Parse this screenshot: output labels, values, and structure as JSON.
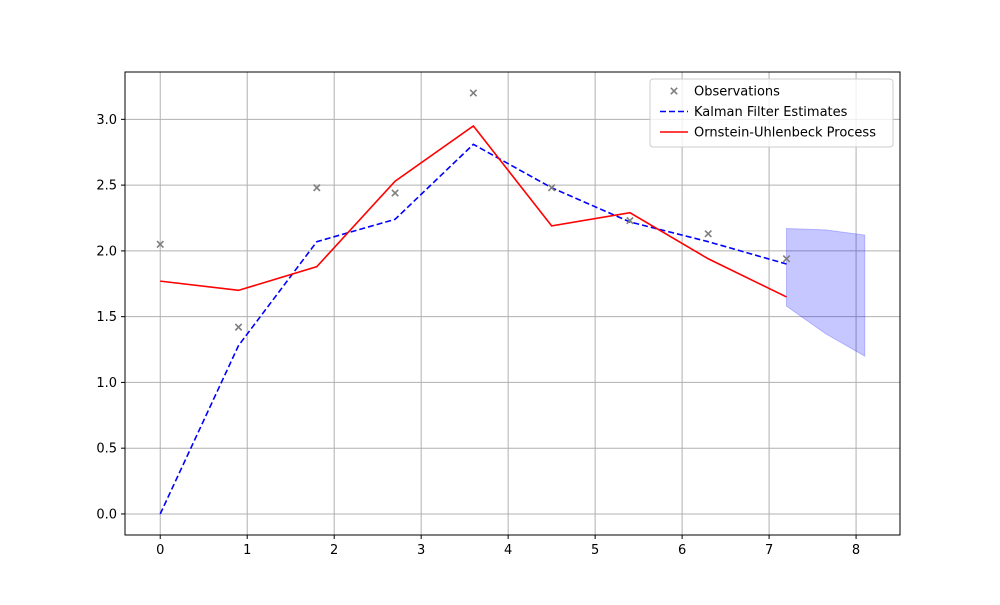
{
  "chart_data": {
    "type": "line",
    "title": "",
    "xlabel": "",
    "ylabel": "",
    "xlim": [
      -0.405,
      8.505
    ],
    "ylim": [
      -0.16,
      3.36
    ],
    "xticks": [
      0,
      1,
      2,
      3,
      4,
      5,
      6,
      7,
      8
    ],
    "yticks": [
      0.0,
      0.5,
      1.0,
      1.5,
      2.0,
      2.5,
      3.0
    ],
    "xtick_labels": [
      "0",
      "1",
      "2",
      "3",
      "4",
      "5",
      "6",
      "7",
      "8"
    ],
    "ytick_labels": [
      "0.0",
      "0.5",
      "1.0",
      "1.5",
      "2.0",
      "2.5",
      "3.0"
    ],
    "grid": true,
    "legend": {
      "position": "top-right",
      "entries": [
        {
          "label": "Observations",
          "marker": "x",
          "color": "#7f7f7f"
        },
        {
          "label": "Kalman Filter Estimates",
          "style": "dashed",
          "color": "#0000ff"
        },
        {
          "label": "Ornstein-Uhlenbeck Process",
          "style": "solid",
          "color": "#ff0000"
        }
      ]
    },
    "series": [
      {
        "name": "Observations",
        "kind": "scatter",
        "color": "#7f7f7f",
        "x": [
          0,
          0.9,
          1.8,
          2.7,
          3.6,
          4.5,
          5.4,
          6.3,
          7.2
        ],
        "y": [
          2.05,
          1.42,
          2.48,
          2.44,
          3.2,
          2.48,
          2.23,
          2.13,
          1.94
        ]
      },
      {
        "name": "Kalman Filter Estimates",
        "kind": "line",
        "style": "dashed",
        "color": "#0000ff",
        "x": [
          0,
          0.9,
          1.8,
          2.7,
          3.6,
          4.5,
          5.4,
          6.3,
          7.2
        ],
        "y": [
          0.0,
          1.28,
          2.07,
          2.24,
          2.81,
          2.48,
          2.22,
          2.07,
          1.9
        ]
      },
      {
        "name": "Ornstein-Uhlenbeck Process",
        "kind": "line",
        "style": "solid",
        "color": "#ff0000",
        "x": [
          0,
          0.9,
          1.8,
          2.7,
          3.6,
          4.5,
          5.4,
          6.3,
          7.2
        ],
        "y": [
          1.77,
          1.7,
          1.88,
          2.53,
          2.95,
          2.19,
          2.29,
          1.94,
          1.65
        ]
      }
    ],
    "fill_band": {
      "color": "#0000ff",
      "opacity": 0.22,
      "x": [
        7.2,
        7.65,
        8.1
      ],
      "upper": [
        2.17,
        2.16,
        2.12
      ],
      "lower": [
        1.58,
        1.37,
        1.2
      ]
    }
  }
}
